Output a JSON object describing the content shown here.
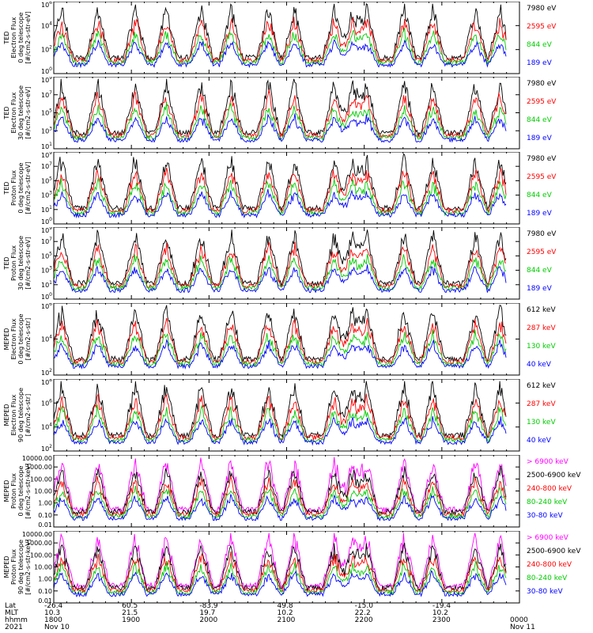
{
  "chart_data": [
    {
      "type": "line",
      "title": "",
      "ylabel": [
        "TED",
        "Electron Flux",
        "0 deg telescope",
        "[#/cm2-s-str-eV]"
      ],
      "yscale": "log",
      "yticks": [
        "10^0",
        "10^2",
        "10^4",
        "10^6"
      ],
      "ylim": [
        1,
        1000000
      ],
      "series": [
        {
          "name": "7980 eV",
          "color": "#000000"
        },
        {
          "name": "2595 eV",
          "color": "#ff0000"
        },
        {
          "name": "844 eV",
          "color": "#00cc00"
        },
        {
          "name": "189 eV",
          "color": "#0000ff"
        }
      ]
    },
    {
      "type": "line",
      "title": "",
      "ylabel": [
        "TED",
        "Electron Flux",
        "30 deg telescope",
        "[#/cm2-s-str-eV]"
      ],
      "yscale": "log",
      "yticks": [
        "10^1",
        "10^3",
        "10^5",
        "10^7",
        "10^9"
      ],
      "ylim": [
        1,
        1000000000
      ],
      "series": [
        {
          "name": "7980 eV",
          "color": "#000000"
        },
        {
          "name": "2595 eV",
          "color": "#ff0000"
        },
        {
          "name": "844 eV",
          "color": "#00cc00"
        },
        {
          "name": "189 eV",
          "color": "#0000ff"
        }
      ]
    },
    {
      "type": "line",
      "title": "",
      "ylabel": [
        "TED",
        "Proton Flux",
        "0 deg telescope",
        "[#/cm2-s-str-eV]"
      ],
      "yscale": "log",
      "yticks": [
        "10^0",
        "10^1",
        "10^3",
        "10^5",
        "10^7",
        "10^9"
      ],
      "ylim": [
        1,
        1000000000
      ],
      "series": [
        {
          "name": "7980 eV",
          "color": "#000000"
        },
        {
          "name": "2595 eV",
          "color": "#ff0000"
        },
        {
          "name": "844 eV",
          "color": "#00cc00"
        },
        {
          "name": "189 eV",
          "color": "#0000ff"
        }
      ]
    },
    {
      "type": "line",
      "title": "",
      "ylabel": [
        "TED",
        "Proton Flux",
        "30 deg telescope",
        "[#/cm2-s-str-eV]"
      ],
      "yscale": "log",
      "yticks": [
        "10^0",
        "10^1",
        "10^3",
        "10^5",
        "10^7",
        "10^9"
      ],
      "ylim": [
        1,
        1000000000
      ],
      "series": [
        {
          "name": "7980 eV",
          "color": "#000000"
        },
        {
          "name": "2595 eV",
          "color": "#ff0000"
        },
        {
          "name": "844 eV",
          "color": "#00cc00"
        },
        {
          "name": "189 eV",
          "color": "#0000ff"
        }
      ]
    },
    {
      "type": "line",
      "title": "",
      "ylabel": [
        "MEPED",
        "Electron Flux",
        "0 deg telescope",
        "[#/cm2-s-str]"
      ],
      "yscale": "log",
      "yticks": [
        "10^2",
        "10^4",
        "10^6"
      ],
      "ylim": [
        100,
        1000000
      ],
      "series": [
        {
          "name": "612 keV",
          "color": "#000000"
        },
        {
          "name": "287 keV",
          "color": "#ff0000"
        },
        {
          "name": "130 keV",
          "color": "#00cc00"
        },
        {
          "name": "40 keV",
          "color": "#0000ff"
        }
      ]
    },
    {
      "type": "line",
      "title": "",
      "ylabel": [
        "MEPED",
        "Electron Flux",
        "90 deg telescope",
        "[#/cm2-s-str]"
      ],
      "yscale": "log",
      "yticks": [
        "10^2",
        "10^4",
        "10^6",
        "10^8"
      ],
      "ylim": [
        100,
        100000000
      ],
      "series": [
        {
          "name": "612 keV",
          "color": "#000000"
        },
        {
          "name": "287 keV",
          "color": "#ff0000"
        },
        {
          "name": "130 keV",
          "color": "#00cc00"
        },
        {
          "name": "40 keV",
          "color": "#0000ff"
        }
      ]
    },
    {
      "type": "line",
      "title": "",
      "ylabel": [
        "MEPED",
        "Proton Flux",
        "0 deg telescope",
        "[#/cm2-s-str-keV]"
      ],
      "yscale": "log",
      "yticks": [
        "0.01",
        "0.10",
        "1.00",
        "10.00",
        "100.00",
        "1000.00",
        "10000.00"
      ],
      "ylim": [
        0.01,
        10000
      ],
      "series": [
        {
          "name": "> 6900 keV",
          "color": "#ff00ff"
        },
        {
          "name": "2500-6900 keV",
          "color": "#000000"
        },
        {
          "name": "240-800 keV",
          "color": "#ff0000"
        },
        {
          "name": "80-240 keV",
          "color": "#00cc00"
        },
        {
          "name": "30-80 keV",
          "color": "#0000ff"
        }
      ]
    },
    {
      "type": "line",
      "title": "",
      "ylabel": [
        "MEPED",
        "Proton Flux",
        "90 deg telescope",
        "[#/cm2-s-str-keV]"
      ],
      "yscale": "log",
      "yticks": [
        "0.01",
        "0.10",
        "1.00",
        "10.00",
        "100.00",
        "1000.00",
        "10000.00"
      ],
      "ylim": [
        0.01,
        10000
      ],
      "series": [
        {
          "name": "> 6900 keV",
          "color": "#ff00ff"
        },
        {
          "name": "2500-6900 keV",
          "color": "#000000"
        },
        {
          "name": "240-800 keV",
          "color": "#ff0000"
        },
        {
          "name": "80-240 keV",
          "color": "#00cc00"
        },
        {
          "name": "30-80 keV",
          "color": "#0000ff"
        }
      ]
    }
  ],
  "x_axis": {
    "row_labels": [
      "Lat",
      "MLT",
      "hhmm",
      "2021"
    ],
    "columns": [
      {
        "lat": "-26.4",
        "mlt": "10.3",
        "hhmm": "1800",
        "date": "Nov 10"
      },
      {
        "lat": "60.5",
        "mlt": "21.5",
        "hhmm": "1900",
        "date": ""
      },
      {
        "lat": "-83.9",
        "mlt": "19.7",
        "hhmm": "2000",
        "date": ""
      },
      {
        "lat": "49.8",
        "mlt": "10.2",
        "hhmm": "2100",
        "date": ""
      },
      {
        "lat": "-15.0",
        "mlt": "22.2",
        "hhmm": "2200",
        "date": ""
      },
      {
        "lat": "-19.4",
        "mlt": "10.2",
        "hhmm": "2300",
        "date": ""
      },
      {
        "lat": "",
        "mlt": "",
        "hhmm": "0000",
        "date": "Nov 11"
      }
    ]
  },
  "orbit_passes_hhmm": [
    "1806",
    "1834",
    "1903",
    "1927",
    "1954",
    "2017",
    "2046",
    "2106",
    "2137",
    "2151",
    "2202",
    "2231",
    "2253",
    "2326",
    "2345"
  ]
}
